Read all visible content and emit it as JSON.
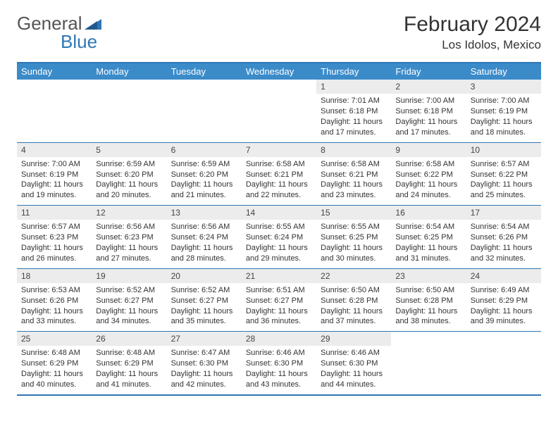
{
  "brand": {
    "part1": "General",
    "part2": "Blue"
  },
  "title": "February 2024",
  "location": "Los Idolos, Mexico",
  "colors": {
    "header_bg": "#3b8bc9",
    "header_text": "#ffffff",
    "border": "#2f77b5",
    "daynum_bg": "#ececec",
    "body_text": "#333333"
  },
  "day_names": [
    "Sunday",
    "Monday",
    "Tuesday",
    "Wednesday",
    "Thursday",
    "Friday",
    "Saturday"
  ],
  "weeks": [
    [
      {
        "empty": true
      },
      {
        "empty": true
      },
      {
        "empty": true
      },
      {
        "empty": true
      },
      {
        "n": "1",
        "sunrise": "Sunrise: 7:01 AM",
        "sunset": "Sunset: 6:18 PM",
        "day1": "Daylight: 11 hours",
        "day2": "and 17 minutes."
      },
      {
        "n": "2",
        "sunrise": "Sunrise: 7:00 AM",
        "sunset": "Sunset: 6:18 PM",
        "day1": "Daylight: 11 hours",
        "day2": "and 17 minutes."
      },
      {
        "n": "3",
        "sunrise": "Sunrise: 7:00 AM",
        "sunset": "Sunset: 6:19 PM",
        "day1": "Daylight: 11 hours",
        "day2": "and 18 minutes."
      }
    ],
    [
      {
        "n": "4",
        "sunrise": "Sunrise: 7:00 AM",
        "sunset": "Sunset: 6:19 PM",
        "day1": "Daylight: 11 hours",
        "day2": "and 19 minutes."
      },
      {
        "n": "5",
        "sunrise": "Sunrise: 6:59 AM",
        "sunset": "Sunset: 6:20 PM",
        "day1": "Daylight: 11 hours",
        "day2": "and 20 minutes."
      },
      {
        "n": "6",
        "sunrise": "Sunrise: 6:59 AM",
        "sunset": "Sunset: 6:20 PM",
        "day1": "Daylight: 11 hours",
        "day2": "and 21 minutes."
      },
      {
        "n": "7",
        "sunrise": "Sunrise: 6:58 AM",
        "sunset": "Sunset: 6:21 PM",
        "day1": "Daylight: 11 hours",
        "day2": "and 22 minutes."
      },
      {
        "n": "8",
        "sunrise": "Sunrise: 6:58 AM",
        "sunset": "Sunset: 6:21 PM",
        "day1": "Daylight: 11 hours",
        "day2": "and 23 minutes."
      },
      {
        "n": "9",
        "sunrise": "Sunrise: 6:58 AM",
        "sunset": "Sunset: 6:22 PM",
        "day1": "Daylight: 11 hours",
        "day2": "and 24 minutes."
      },
      {
        "n": "10",
        "sunrise": "Sunrise: 6:57 AM",
        "sunset": "Sunset: 6:22 PM",
        "day1": "Daylight: 11 hours",
        "day2": "and 25 minutes."
      }
    ],
    [
      {
        "n": "11",
        "sunrise": "Sunrise: 6:57 AM",
        "sunset": "Sunset: 6:23 PM",
        "day1": "Daylight: 11 hours",
        "day2": "and 26 minutes."
      },
      {
        "n": "12",
        "sunrise": "Sunrise: 6:56 AM",
        "sunset": "Sunset: 6:23 PM",
        "day1": "Daylight: 11 hours",
        "day2": "and 27 minutes."
      },
      {
        "n": "13",
        "sunrise": "Sunrise: 6:56 AM",
        "sunset": "Sunset: 6:24 PM",
        "day1": "Daylight: 11 hours",
        "day2": "and 28 minutes."
      },
      {
        "n": "14",
        "sunrise": "Sunrise: 6:55 AM",
        "sunset": "Sunset: 6:24 PM",
        "day1": "Daylight: 11 hours",
        "day2": "and 29 minutes."
      },
      {
        "n": "15",
        "sunrise": "Sunrise: 6:55 AM",
        "sunset": "Sunset: 6:25 PM",
        "day1": "Daylight: 11 hours",
        "day2": "and 30 minutes."
      },
      {
        "n": "16",
        "sunrise": "Sunrise: 6:54 AM",
        "sunset": "Sunset: 6:25 PM",
        "day1": "Daylight: 11 hours",
        "day2": "and 31 minutes."
      },
      {
        "n": "17",
        "sunrise": "Sunrise: 6:54 AM",
        "sunset": "Sunset: 6:26 PM",
        "day1": "Daylight: 11 hours",
        "day2": "and 32 minutes."
      }
    ],
    [
      {
        "n": "18",
        "sunrise": "Sunrise: 6:53 AM",
        "sunset": "Sunset: 6:26 PM",
        "day1": "Daylight: 11 hours",
        "day2": "and 33 minutes."
      },
      {
        "n": "19",
        "sunrise": "Sunrise: 6:52 AM",
        "sunset": "Sunset: 6:27 PM",
        "day1": "Daylight: 11 hours",
        "day2": "and 34 minutes."
      },
      {
        "n": "20",
        "sunrise": "Sunrise: 6:52 AM",
        "sunset": "Sunset: 6:27 PM",
        "day1": "Daylight: 11 hours",
        "day2": "and 35 minutes."
      },
      {
        "n": "21",
        "sunrise": "Sunrise: 6:51 AM",
        "sunset": "Sunset: 6:27 PM",
        "day1": "Daylight: 11 hours",
        "day2": "and 36 minutes."
      },
      {
        "n": "22",
        "sunrise": "Sunrise: 6:50 AM",
        "sunset": "Sunset: 6:28 PM",
        "day1": "Daylight: 11 hours",
        "day2": "and 37 minutes."
      },
      {
        "n": "23",
        "sunrise": "Sunrise: 6:50 AM",
        "sunset": "Sunset: 6:28 PM",
        "day1": "Daylight: 11 hours",
        "day2": "and 38 minutes."
      },
      {
        "n": "24",
        "sunrise": "Sunrise: 6:49 AM",
        "sunset": "Sunset: 6:29 PM",
        "day1": "Daylight: 11 hours",
        "day2": "and 39 minutes."
      }
    ],
    [
      {
        "n": "25",
        "sunrise": "Sunrise: 6:48 AM",
        "sunset": "Sunset: 6:29 PM",
        "day1": "Daylight: 11 hours",
        "day2": "and 40 minutes."
      },
      {
        "n": "26",
        "sunrise": "Sunrise: 6:48 AM",
        "sunset": "Sunset: 6:29 PM",
        "day1": "Daylight: 11 hours",
        "day2": "and 41 minutes."
      },
      {
        "n": "27",
        "sunrise": "Sunrise: 6:47 AM",
        "sunset": "Sunset: 6:30 PM",
        "day1": "Daylight: 11 hours",
        "day2": "and 42 minutes."
      },
      {
        "n": "28",
        "sunrise": "Sunrise: 6:46 AM",
        "sunset": "Sunset: 6:30 PM",
        "day1": "Daylight: 11 hours",
        "day2": "and 43 minutes."
      },
      {
        "n": "29",
        "sunrise": "Sunrise: 6:46 AM",
        "sunset": "Sunset: 6:30 PM",
        "day1": "Daylight: 11 hours",
        "day2": "and 44 minutes."
      },
      {
        "empty": true
      },
      {
        "empty": true
      }
    ]
  ]
}
